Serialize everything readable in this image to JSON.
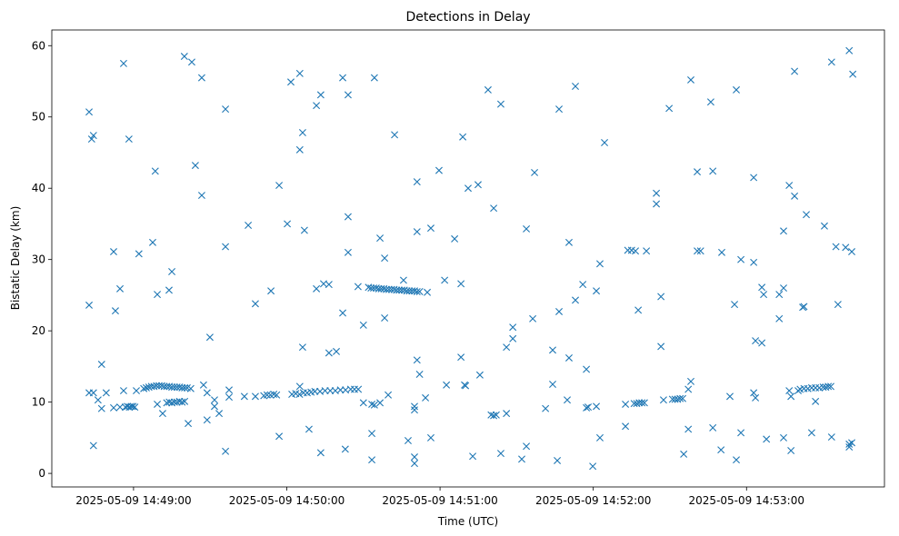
{
  "chart_data": {
    "type": "scatter",
    "title": "Detections in Delay",
    "xlabel": "Time (UTC)",
    "ylabel": "Bistatic Delay (km)",
    "x_unit": "seconds relative to 2025-05-09 14:49:00 UTC",
    "xlim": [
      -32,
      294
    ],
    "ylim": [
      -1.9,
      62.2
    ],
    "grid": false,
    "marker": "x",
    "color": "#1f77b4",
    "xticks": [
      {
        "value": 0,
        "label": "2025-05-09 14:49:00"
      },
      {
        "value": 60,
        "label": "2025-05-09 14:50:00"
      },
      {
        "value": 120,
        "label": "2025-05-09 14:51:00"
      },
      {
        "value": 180,
        "label": "2025-05-09 14:52:00"
      },
      {
        "value": 240,
        "label": "2025-05-09 14:53:00"
      }
    ],
    "yticks": [
      {
        "value": 0,
        "label": "0"
      },
      {
        "value": 10,
        "label": "10"
      },
      {
        "value": 20,
        "label": "20"
      },
      {
        "value": 30,
        "label": "30"
      },
      {
        "value": 40,
        "label": "40"
      },
      {
        "value": 50,
        "label": "50"
      },
      {
        "value": 60,
        "label": "60"
      }
    ],
    "points": [
      [
        -17.4,
        50.7
      ],
      [
        -17.4,
        11.3
      ],
      [
        -17.4,
        23.6
      ],
      [
        -16.4,
        46.9
      ],
      [
        -15.7,
        47.4
      ],
      [
        -15.7,
        3.9
      ],
      [
        -15.7,
        11.3
      ],
      [
        -13.9,
        10.3
      ],
      [
        -12.5,
        15.3
      ],
      [
        -12.5,
        9.1
      ],
      [
        -10.7,
        11.3
      ],
      [
        -7.8,
        31.1
      ],
      [
        -7.8,
        9.2
      ],
      [
        -7.1,
        22.8
      ],
      [
        -5.3,
        25.9
      ],
      [
        -5.3,
        9.3
      ],
      [
        -3.9,
        57.5
      ],
      [
        -3.9,
        11.6
      ],
      [
        -3.2,
        9.3
      ],
      [
        -2.4,
        9.4
      ],
      [
        -1.6,
        9.3
      ],
      [
        -0.9,
        9.4
      ],
      [
        -0.2,
        9.4
      ],
      [
        0.5,
        9.3
      ],
      [
        -1.8,
        46.9
      ],
      [
        1.1,
        11.6
      ],
      [
        2.1,
        30.8
      ],
      [
        4,
        11.9
      ],
      [
        5,
        12.0
      ],
      [
        6,
        12.1
      ],
      [
        7,
        12.2
      ],
      [
        8,
        12.2
      ],
      [
        9,
        12.3
      ],
      [
        10,
        12.3
      ],
      [
        11,
        12.3
      ],
      [
        12,
        12.2
      ],
      [
        13,
        12.2
      ],
      [
        14,
        12.2
      ],
      [
        15,
        12.1
      ],
      [
        16,
        12.1
      ],
      [
        17,
        12.1
      ],
      [
        18,
        12.1
      ],
      [
        19,
        12.0
      ],
      [
        20,
        12.0
      ],
      [
        21,
        12.0
      ],
      [
        22.4,
        11.9
      ],
      [
        7.5,
        32.4
      ],
      [
        8.5,
        42.4
      ],
      [
        9.3,
        25.1
      ],
      [
        9.3,
        9.7
      ],
      [
        11.4,
        8.4
      ],
      [
        13.9,
        25.7
      ],
      [
        15,
        28.3
      ],
      [
        13,
        9.9
      ],
      [
        14,
        10.0
      ],
      [
        15,
        9.9
      ],
      [
        16,
        10.0
      ],
      [
        17,
        10.0
      ],
      [
        18,
        10.1
      ],
      [
        19,
        10.0
      ],
      [
        20,
        10.1
      ],
      [
        19.9,
        58.5
      ],
      [
        21.4,
        7.0
      ],
      [
        22.8,
        57.7
      ],
      [
        24.2,
        43.2
      ],
      [
        26.7,
        55.5
      ],
      [
        26.7,
        39.0
      ],
      [
        27.4,
        12.4
      ],
      [
        28.8,
        7.5
      ],
      [
        28.8,
        11.3
      ],
      [
        29.9,
        19.1
      ],
      [
        31.7,
        10.3
      ],
      [
        31.7,
        9.4
      ],
      [
        33.5,
        8.4
      ],
      [
        36,
        51.1
      ],
      [
        36,
        31.8
      ],
      [
        36,
        3.1
      ],
      [
        37.4,
        11.7
      ],
      [
        37.4,
        10.7
      ],
      [
        43.4,
        10.8
      ],
      [
        44.9,
        34.8
      ],
      [
        47.7,
        23.8
      ],
      [
        47.7,
        10.8
      ],
      [
        51,
        10.9
      ],
      [
        52.3,
        11.0
      ],
      [
        53.6,
        11.0
      ],
      [
        54.9,
        11.1
      ],
      [
        56,
        11.0
      ],
      [
        53.8,
        25.6
      ],
      [
        57,
        40.4
      ],
      [
        57,
        5.2
      ],
      [
        60.2,
        35.0
      ],
      [
        61.6,
        54.9
      ],
      [
        65.1,
        56.1
      ],
      [
        65.1,
        45.4
      ],
      [
        65.1,
        12.2
      ],
      [
        66.2,
        47.8
      ],
      [
        66.2,
        17.7
      ],
      [
        66.9,
        34.1
      ],
      [
        62,
        11.1
      ],
      [
        63.5,
        11.2
      ],
      [
        65,
        11.1
      ],
      [
        66.5,
        11.3
      ],
      [
        68,
        11.3
      ],
      [
        69.5,
        11.4
      ],
      [
        68.7,
        6.2
      ],
      [
        71.6,
        51.6
      ],
      [
        71.6,
        25.9
      ],
      [
        73.3,
        53.1
      ],
      [
        73.3,
        2.9
      ],
      [
        74.4,
        26.6
      ],
      [
        71,
        11.5
      ],
      [
        73,
        11.5
      ],
      [
        75,
        11.6
      ],
      [
        77,
        11.6
      ],
      [
        79,
        11.6
      ],
      [
        81,
        11.7
      ],
      [
        83,
        11.7
      ],
      [
        85,
        11.8
      ],
      [
        86.5,
        11.8
      ],
      [
        88,
        11.8
      ],
      [
        76.5,
        16.9
      ],
      [
        76.5,
        26.5
      ],
      [
        79.4,
        17.1
      ],
      [
        81.9,
        55.5
      ],
      [
        81.9,
        22.5
      ],
      [
        82.9,
        3.4
      ],
      [
        84,
        53.1
      ],
      [
        84,
        36.0
      ],
      [
        84,
        31.0
      ],
      [
        87.9,
        26.2
      ],
      [
        90,
        20.8
      ],
      [
        90,
        9.9
      ],
      [
        92,
        26.1
      ],
      [
        93,
        26.0
      ],
      [
        94,
        26.0
      ],
      [
        95,
        26.0
      ],
      [
        96,
        25.9
      ],
      [
        97,
        25.9
      ],
      [
        98,
        25.9
      ],
      [
        99,
        25.8
      ],
      [
        100,
        25.8
      ],
      [
        101,
        25.8
      ],
      [
        102,
        25.8
      ],
      [
        103,
        25.7
      ],
      [
        104,
        25.7
      ],
      [
        105,
        25.7
      ],
      [
        106,
        25.7
      ],
      [
        107,
        25.6
      ],
      [
        108,
        25.6
      ],
      [
        109,
        25.6
      ],
      [
        110,
        25.6
      ],
      [
        111,
        25.5
      ],
      [
        112,
        25.5
      ],
      [
        93.3,
        5.6
      ],
      [
        93.3,
        1.9
      ],
      [
        93.3,
        9.7
      ],
      [
        94.3,
        55.5
      ],
      [
        94.3,
        9.6
      ],
      [
        96.5,
        33.0
      ],
      [
        96.5,
        9.9
      ],
      [
        98.3,
        21.8
      ],
      [
        98.3,
        30.2
      ],
      [
        99.7,
        11.0
      ],
      [
        102.2,
        47.5
      ],
      [
        105.7,
        27.1
      ],
      [
        107.5,
        4.6
      ],
      [
        110,
        9.4
      ],
      [
        110,
        8.9
      ],
      [
        110,
        2.3
      ],
      [
        110,
        1.4
      ],
      [
        111,
        40.9
      ],
      [
        111,
        33.9
      ],
      [
        111,
        15.9
      ],
      [
        112,
        13.9
      ],
      [
        114.3,
        10.6
      ],
      [
        115,
        25.4
      ],
      [
        116.4,
        34.4
      ],
      [
        116.4,
        5.0
      ],
      [
        119.6,
        42.5
      ],
      [
        121.8,
        27.1
      ],
      [
        122.5,
        12.4
      ],
      [
        125.7,
        32.9
      ],
      [
        128.2,
        26.6
      ],
      [
        128.2,
        16.3
      ],
      [
        128.9,
        47.2
      ],
      [
        129.6,
        12.4
      ],
      [
        130,
        12.3
      ],
      [
        131,
        40.0
      ],
      [
        132.8,
        2.4
      ],
      [
        134.9,
        40.5
      ],
      [
        135.6,
        13.8
      ],
      [
        138.8,
        53.8
      ],
      [
        140,
        8.2
      ],
      [
        141,
        8.1
      ],
      [
        142,
        8.2
      ],
      [
        141,
        37.2
      ],
      [
        143.8,
        51.8
      ],
      [
        143.8,
        2.8
      ],
      [
        146,
        17.7
      ],
      [
        146,
        8.4
      ],
      [
        148.5,
        20.5
      ],
      [
        148.5,
        18.9
      ],
      [
        152,
        2.0
      ],
      [
        153.8,
        34.3
      ],
      [
        153.8,
        3.8
      ],
      [
        156.3,
        21.7
      ],
      [
        157,
        42.2
      ],
      [
        161.3,
        9.1
      ],
      [
        164.1,
        17.3
      ],
      [
        164.1,
        12.5
      ],
      [
        165.9,
        1.8
      ],
      [
        166.6,
        51.1
      ],
      [
        166.6,
        22.7
      ],
      [
        169.8,
        10.3
      ],
      [
        170.5,
        32.4
      ],
      [
        170.5,
        16.2
      ],
      [
        173,
        54.3
      ],
      [
        173,
        24.3
      ],
      [
        175.9,
        26.5
      ],
      [
        177.3,
        14.6
      ],
      [
        177.3,
        9.2
      ],
      [
        178,
        9.3
      ],
      [
        179.8,
        1.0
      ],
      [
        181.2,
        25.6
      ],
      [
        181.2,
        9.4
      ],
      [
        182.6,
        29.4
      ],
      [
        182.6,
        5.0
      ],
      [
        184.4,
        46.4
      ],
      [
        192.6,
        6.6
      ],
      [
        192.6,
        9.7
      ],
      [
        193.5,
        31.3
      ],
      [
        195,
        31.3
      ],
      [
        196.5,
        31.2
      ],
      [
        196,
        9.8
      ],
      [
        197,
        9.8
      ],
      [
        198,
        9.9
      ],
      [
        199,
        9.9
      ],
      [
        200,
        9.9
      ],
      [
        197.6,
        22.9
      ],
      [
        200.8,
        31.2
      ],
      [
        204.7,
        37.8
      ],
      [
        204.7,
        39.3
      ],
      [
        206.5,
        24.8
      ],
      [
        206.5,
        17.8
      ],
      [
        207.5,
        10.3
      ],
      [
        209.7,
        51.2
      ],
      [
        211,
        10.4
      ],
      [
        212,
        10.4
      ],
      [
        213,
        10.4
      ],
      [
        214,
        10.5
      ],
      [
        215,
        10.5
      ],
      [
        215.4,
        2.7
      ],
      [
        217.2,
        6.2
      ],
      [
        217.2,
        11.8
      ],
      [
        218.2,
        55.2
      ],
      [
        218.2,
        12.9
      ],
      [
        220.7,
        42.3
      ],
      [
        220.7,
        31.2
      ],
      [
        222,
        31.2
      ],
      [
        226,
        52.1
      ],
      [
        226.8,
        42.4
      ],
      [
        226.8,
        6.4
      ],
      [
        230,
        3.3
      ],
      [
        230.3,
        31.0
      ],
      [
        233.5,
        10.8
      ],
      [
        235.3,
        23.7
      ],
      [
        236,
        53.8
      ],
      [
        236,
        1.9
      ],
      [
        237.8,
        30.0
      ],
      [
        237.8,
        5.7
      ],
      [
        242.8,
        41.5
      ],
      [
        242.8,
        11.3
      ],
      [
        242.8,
        29.6
      ],
      [
        243.5,
        18.6
      ],
      [
        243.5,
        10.6
      ],
      [
        246,
        26.1
      ],
      [
        246,
        18.3
      ],
      [
        246.7,
        25.1
      ],
      [
        247.8,
        4.8
      ],
      [
        252.8,
        25.1
      ],
      [
        252.8,
        21.7
      ],
      [
        254.5,
        34.0
      ],
      [
        254.5,
        26.0
      ],
      [
        254.5,
        5.0
      ],
      [
        256.7,
        11.6
      ],
      [
        256.7,
        40.4
      ],
      [
        257.4,
        3.2
      ],
      [
        257.4,
        10.8
      ],
      [
        258.8,
        56.4
      ],
      [
        258.8,
        38.9
      ],
      [
        260.2,
        11.6
      ],
      [
        262,
        23.3
      ],
      [
        262.5,
        23.4
      ],
      [
        263.4,
        36.3
      ],
      [
        261,
        11.8
      ],
      [
        262.5,
        11.9
      ],
      [
        264,
        11.9
      ],
      [
        265.5,
        12.0
      ],
      [
        267,
        12.0
      ],
      [
        268.5,
        12.0
      ],
      [
        270,
        12.1
      ],
      [
        271,
        12.1
      ],
      [
        272,
        12.2
      ],
      [
        273,
        12.2
      ],
      [
        265.5,
        5.7
      ],
      [
        267,
        10.1
      ],
      [
        270.5,
        34.7
      ],
      [
        273.3,
        57.7
      ],
      [
        273.3,
        5.1
      ],
      [
        275,
        31.8
      ],
      [
        275.8,
        23.7
      ],
      [
        278.8,
        31.7
      ],
      [
        280.2,
        59.3
      ],
      [
        280.2,
        3.7
      ],
      [
        280.2,
        4.1
      ],
      [
        281.2,
        31.1
      ],
      [
        281.2,
        4.3
      ],
      [
        281.6,
        56.0
      ]
    ]
  }
}
